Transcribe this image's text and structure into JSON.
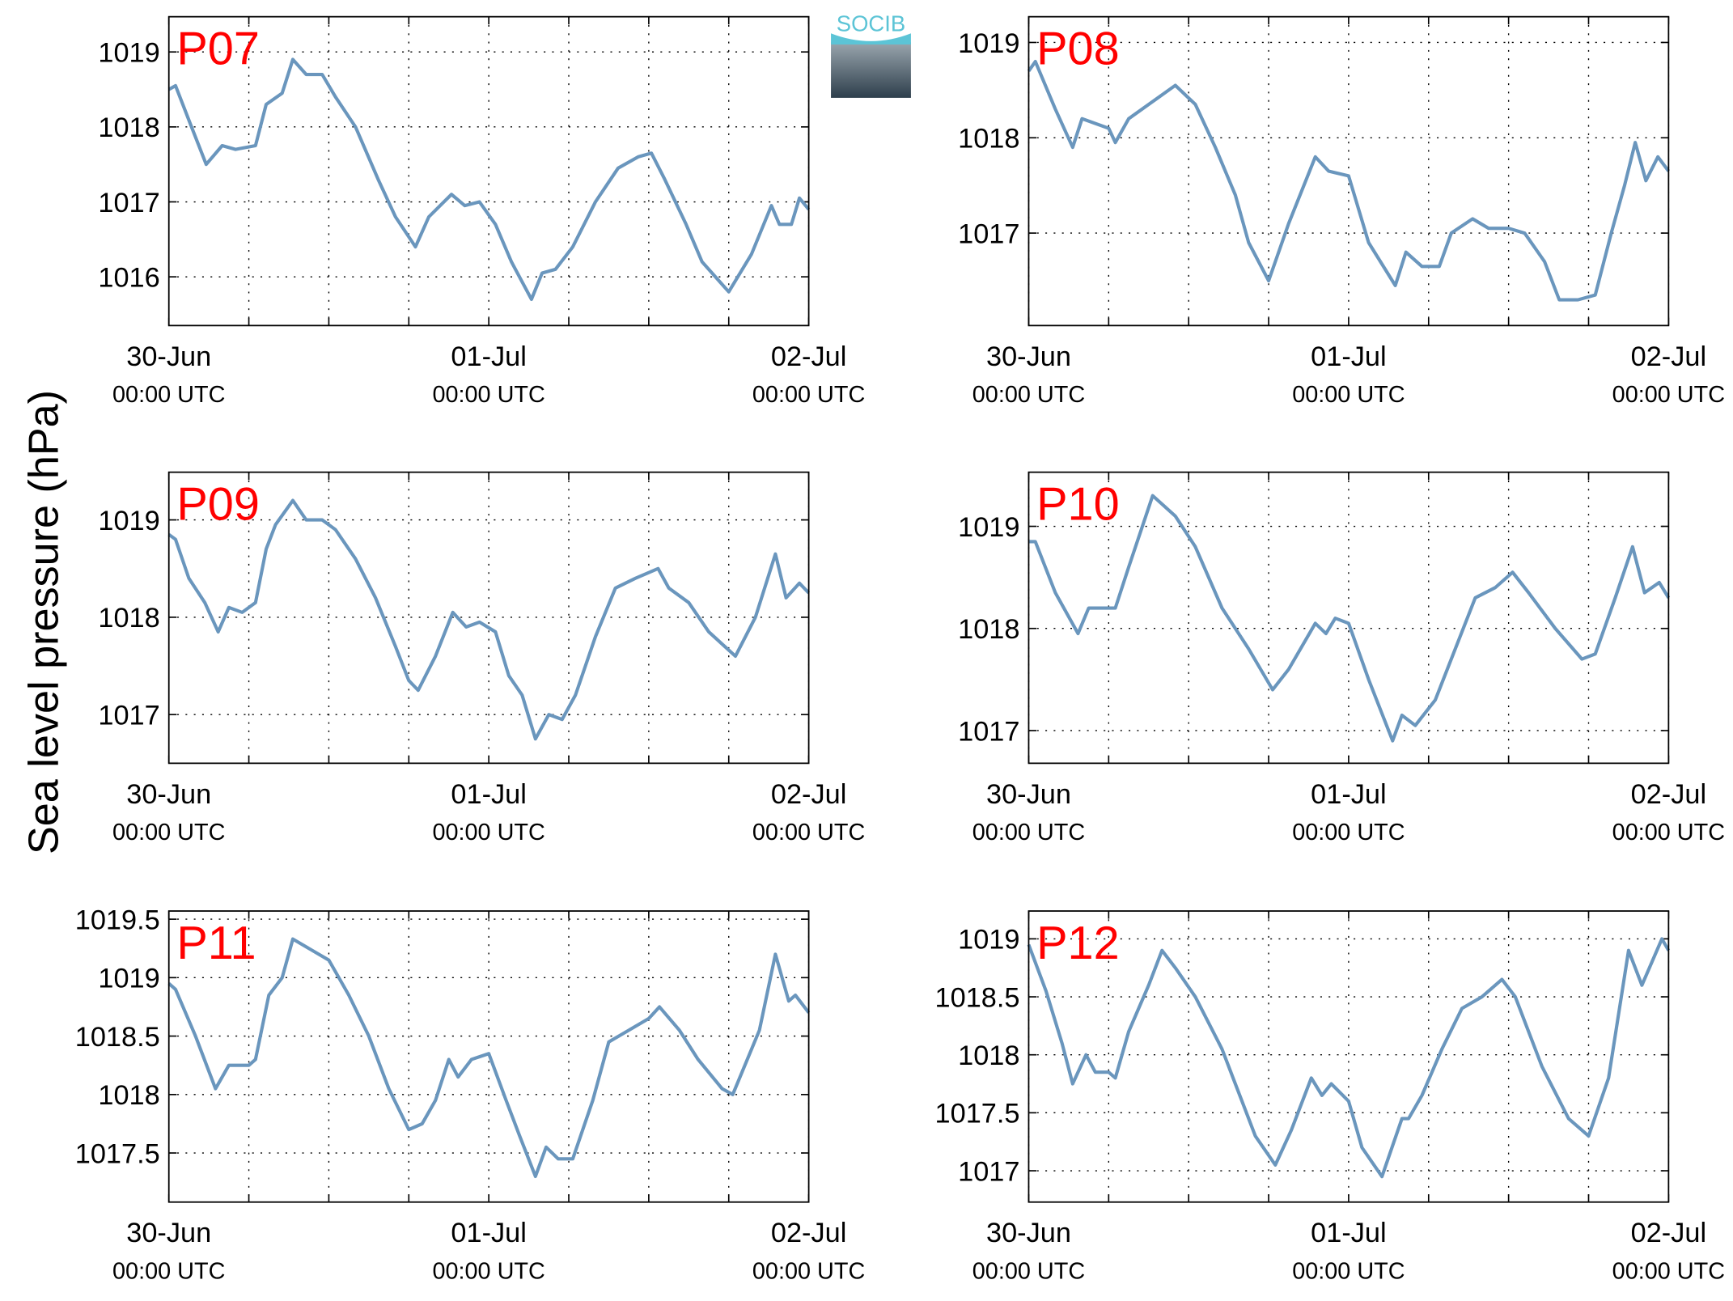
{
  "ylabel": "Sea level pressure (hPa)",
  "logo": "SOCIB",
  "chart_data": [
    {
      "type": "line",
      "title": "P07",
      "color": "#6a96bd",
      "grid": true,
      "x": [
        0,
        0.5,
        1.7,
        2.8,
        4,
        5,
        6.5,
        7.3,
        8.5,
        9.3,
        10.3,
        11.5,
        12.5,
        14,
        15.7,
        17,
        18.5,
        19.5,
        21.2,
        22.2,
        23.3,
        24.5,
        25.7,
        27.2,
        28,
        29,
        30.3,
        32,
        33.7,
        35.2,
        36.2,
        37.2,
        38.8,
        40,
        42,
        43.7,
        45.2,
        45.8,
        46.7,
        47.3,
        48
      ],
      "values": [
        1018.5,
        1018.55,
        1018.0,
        1017.5,
        1017.75,
        1017.7,
        1017.75,
        1018.3,
        1018.45,
        1018.9,
        1018.7,
        1018.7,
        1018.4,
        1018.0,
        1017.3,
        1016.8,
        1016.4,
        1016.8,
        1017.1,
        1016.95,
        1017.0,
        1016.7,
        1016.2,
        1015.7,
        1016.05,
        1016.1,
        1016.4,
        1017.0,
        1017.45,
        1017.6,
        1017.65,
        1017.3,
        1016.7,
        1016.2,
        1015.8,
        1016.3,
        1016.95,
        1016.7,
        1016.7,
        1017.05,
        1016.9
      ],
      "xlim": [
        0,
        48
      ],
      "xticks": [
        {
          "value": 0,
          "label": [
            "30-Jun",
            "00:00 UTC"
          ]
        },
        {
          "value": 24,
          "label": [
            "01-Jul",
            "00:00 UTC"
          ]
        },
        {
          "value": 48,
          "label": [
            "02-Jul",
            "00:00 UTC"
          ]
        }
      ],
      "xminorticks": [
        6,
        12,
        18,
        30,
        36,
        42
      ],
      "ylim": [
        1015.35,
        1019.47
      ],
      "yticks": [
        1016,
        1017,
        1018,
        1019
      ]
    },
    {
      "type": "line",
      "title": "P08",
      "color": "#6a96bd",
      "grid": true,
      "x": [
        0,
        0.5,
        2,
        3.3,
        4,
        6,
        6.5,
        7.5,
        9.5,
        11,
        12.5,
        14,
        15.5,
        16.5,
        18,
        19.5,
        21.5,
        22.5,
        24,
        25.5,
        27.5,
        28.3,
        29.5,
        30.8,
        31.7,
        33.3,
        34.5,
        36,
        37.2,
        38.7,
        39.8,
        41.2,
        42.5,
        43.7,
        44.7,
        45.5,
        46.3,
        47.2,
        48
      ],
      "values": [
        1018.7,
        1018.8,
        1018.3,
        1017.9,
        1018.2,
        1018.1,
        1017.95,
        1018.2,
        1018.4,
        1018.55,
        1018.35,
        1017.9,
        1017.4,
        1016.9,
        1016.5,
        1017.1,
        1017.8,
        1017.65,
        1017.6,
        1016.9,
        1016.45,
        1016.8,
        1016.65,
        1016.65,
        1017.0,
        1017.15,
        1017.05,
        1017.05,
        1017.0,
        1016.7,
        1016.3,
        1016.3,
        1016.35,
        1017.0,
        1017.5,
        1017.95,
        1017.55,
        1017.8,
        1017.65
      ],
      "xlim": [
        0,
        48
      ],
      "xticks": [
        {
          "value": 0,
          "label": [
            "30-Jun",
            "00:00 UTC"
          ]
        },
        {
          "value": 24,
          "label": [
            "01-Jul",
            "00:00 UTC"
          ]
        },
        {
          "value": 48,
          "label": [
            "02-Jul",
            "00:00 UTC"
          ]
        }
      ],
      "xminorticks": [
        6,
        12,
        18,
        30,
        36,
        42
      ],
      "ylim": [
        1016.03,
        1019.27
      ],
      "yticks": [
        1017,
        1018,
        1019
      ]
    },
    {
      "type": "line",
      "title": "P09",
      "color": "#6a96bd",
      "grid": true,
      "x": [
        0,
        0.5,
        1.5,
        2.7,
        3.7,
        4.5,
        5.5,
        6.5,
        7.3,
        8,
        9.3,
        10.3,
        11.5,
        12.5,
        14,
        15.5,
        17,
        18,
        18.7,
        20,
        21.3,
        22.3,
        23.3,
        24.5,
        25.5,
        26.5,
        27.5,
        28.5,
        29.5,
        30.5,
        32,
        33.5,
        35,
        36.7,
        37.5,
        39,
        40.5,
        42.5,
        44,
        45.5,
        46.3,
        47.3,
        48
      ],
      "values": [
        1018.85,
        1018.8,
        1018.4,
        1018.15,
        1017.85,
        1018.1,
        1018.05,
        1018.15,
        1018.7,
        1018.95,
        1019.2,
        1019.0,
        1019.0,
        1018.9,
        1018.6,
        1018.2,
        1017.7,
        1017.35,
        1017.25,
        1017.6,
        1018.05,
        1017.9,
        1017.95,
        1017.85,
        1017.4,
        1017.2,
        1016.75,
        1017.0,
        1016.95,
        1017.2,
        1017.8,
        1018.3,
        1018.4,
        1018.5,
        1018.3,
        1018.15,
        1017.85,
        1017.6,
        1018.0,
        1018.65,
        1018.2,
        1018.35,
        1018.25
      ],
      "xlim": [
        0,
        48
      ],
      "xticks": [
        {
          "value": 0,
          "label": [
            "30-Jun",
            "00:00 UTC"
          ]
        },
        {
          "value": 24,
          "label": [
            "01-Jul",
            "00:00 UTC"
          ]
        },
        {
          "value": 48,
          "label": [
            "02-Jul",
            "00:00 UTC"
          ]
        }
      ],
      "xminorticks": [
        6,
        12,
        18,
        30,
        36,
        42
      ],
      "ylim": [
        1016.5,
        1019.49
      ],
      "yticks": [
        1017,
        1018,
        1019
      ]
    },
    {
      "type": "line",
      "title": "P10",
      "color": "#6a96bd",
      "grid": true,
      "x": [
        0,
        0.5,
        2,
        3.7,
        4.5,
        6.5,
        7.5,
        9.3,
        11,
        12.5,
        14.5,
        16.5,
        18.3,
        19.5,
        21.5,
        22.3,
        23,
        24,
        25.5,
        27.3,
        28,
        29,
        30.5,
        32,
        33.5,
        35,
        36.3,
        37.5,
        39.5,
        41.5,
        42.5,
        44,
        45.3,
        46.2,
        47.3,
        48
      ],
      "values": [
        1018.85,
        1018.85,
        1018.35,
        1017.95,
        1018.2,
        1018.2,
        1018.6,
        1019.3,
        1019.1,
        1018.8,
        1018.2,
        1017.8,
        1017.4,
        1017.6,
        1018.05,
        1017.95,
        1018.1,
        1018.05,
        1017.5,
        1016.9,
        1017.15,
        1017.05,
        1017.3,
        1017.8,
        1018.3,
        1018.4,
        1018.55,
        1018.35,
        1018.0,
        1017.7,
        1017.75,
        1018.3,
        1018.8,
        1018.35,
        1018.45,
        1018.3
      ],
      "xlim": [
        0,
        48
      ],
      "xticks": [
        {
          "value": 0,
          "label": [
            "30-Jun",
            "00:00 UTC"
          ]
        },
        {
          "value": 24,
          "label": [
            "01-Jul",
            "00:00 UTC"
          ]
        },
        {
          "value": 48,
          "label": [
            "02-Jul",
            "00:00 UTC"
          ]
        }
      ],
      "xminorticks": [
        6,
        12,
        18,
        30,
        36,
        42
      ],
      "ylim": [
        1016.68,
        1019.53
      ],
      "yticks": [
        1017,
        1018,
        1019
      ]
    },
    {
      "type": "line",
      "title": "P11",
      "color": "#6a96bd",
      "grid": true,
      "x": [
        0,
        0.5,
        2,
        3.5,
        4.5,
        6,
        6.5,
        7.5,
        8.5,
        9.3,
        10.5,
        12,
        13.5,
        15,
        16.5,
        18,
        19,
        20,
        21,
        21.7,
        22.7,
        24,
        25.3,
        26.3,
        27.5,
        28.3,
        29.2,
        30.3,
        31.8,
        33,
        34.5,
        36,
        36.8,
        38.3,
        39.7,
        41.5,
        42.3,
        44.3,
        45.5,
        46.5,
        47,
        48
      ],
      "values": [
        1018.95,
        1018.9,
        1018.5,
        1018.05,
        1018.25,
        1018.25,
        1018.3,
        1018.85,
        1019.0,
        1019.33,
        1019.25,
        1019.15,
        1018.85,
        1018.5,
        1018.05,
        1017.7,
        1017.75,
        1017.95,
        1018.3,
        1018.15,
        1018.3,
        1018.35,
        1017.95,
        1017.65,
        1017.3,
        1017.55,
        1017.45,
        1017.45,
        1017.95,
        1018.45,
        1018.55,
        1018.65,
        1018.75,
        1018.55,
        1018.3,
        1018.05,
        1018.0,
        1018.55,
        1019.2,
        1018.8,
        1018.85,
        1018.7
      ],
      "xlim": [
        0,
        48
      ],
      "xticks": [
        {
          "value": 0,
          "label": [
            "30-Jun",
            "00:00 UTC"
          ]
        },
        {
          "value": 24,
          "label": [
            "01-Jul",
            "00:00 UTC"
          ]
        },
        {
          "value": 48,
          "label": [
            "02-Jul",
            "00:00 UTC"
          ]
        }
      ],
      "xminorticks": [
        6,
        12,
        18,
        30,
        36,
        42
      ],
      "ylim": [
        1017.08,
        1019.57
      ],
      "yticks": [
        1017.5,
        1018,
        1018.5,
        1019,
        1019.5
      ]
    },
    {
      "type": "line",
      "title": "P12",
      "color": "#6a96bd",
      "grid": true,
      "x": [
        0,
        1.3,
        2.5,
        3.3,
        4.3,
        5,
        6,
        6.5,
        7.5,
        9,
        10,
        11,
        12.5,
        14.5,
        16,
        17,
        18.5,
        19.7,
        21.2,
        22,
        22.7,
        24,
        25,
        26.5,
        28,
        28.5,
        29.5,
        31,
        32.5,
        34,
        35.5,
        36.5,
        38.5,
        40.5,
        42,
        43.5,
        45,
        46,
        47.5,
        48
      ],
      "values": [
        1018.95,
        1018.55,
        1018.1,
        1017.75,
        1018.0,
        1017.85,
        1017.85,
        1017.8,
        1018.2,
        1018.6,
        1018.9,
        1018.75,
        1018.5,
        1018.05,
        1017.6,
        1017.3,
        1017.05,
        1017.35,
        1017.8,
        1017.65,
        1017.75,
        1017.6,
        1017.2,
        1016.95,
        1017.45,
        1017.45,
        1017.65,
        1018.05,
        1018.4,
        1018.5,
        1018.65,
        1018.5,
        1017.9,
        1017.45,
        1017.3,
        1017.8,
        1018.9,
        1018.6,
        1019.0,
        1018.9
      ],
      "xlim": [
        0,
        48
      ],
      "xticks": [
        {
          "value": 0,
          "label": [
            "30-Jun",
            "00:00 UTC"
          ]
        },
        {
          "value": 24,
          "label": [
            "01-Jul",
            "00:00 UTC"
          ]
        },
        {
          "value": 48,
          "label": [
            "02-Jul",
            "00:00 UTC"
          ]
        }
      ],
      "xminorticks": [
        6,
        12,
        18,
        30,
        36,
        42
      ],
      "ylim": [
        1016.73,
        1019.24
      ],
      "yticks": [
        1017,
        1017.5,
        1018,
        1018.5,
        1019
      ]
    }
  ]
}
